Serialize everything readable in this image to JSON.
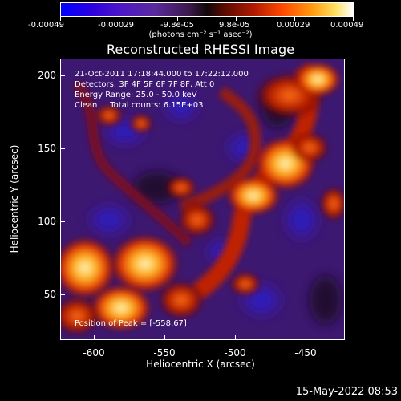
{
  "colorbar": {
    "tick_labels": [
      "-0.00049",
      "-0.00029",
      "-9.8e-05",
      "9.8e-05",
      "0.00029",
      "0.00049"
    ],
    "units": "(photons cm⁻² s⁻¹ asec⁻²)"
  },
  "title": "Reconstructed RHESSI Image",
  "info": {
    "time_range": "21-Oct-2011 17:18:44.000 to 17:22:12.000",
    "detectors": "Detectors: 3F 4F 5F 6F 7F 8F, Att 0",
    "energy": "Energy Range: 25.0 - 50.0 keV",
    "clean": "Clean     Total counts: 6.15E+03"
  },
  "peak": "Position of Peak = [-558,67]",
  "axes": {
    "xlabel": "Heliocentric X (arcsec)",
    "ylabel": "Heliocentric Y (arcsec)",
    "xticks": [
      "-600",
      "-550",
      "-500",
      "-450"
    ],
    "yticks": [
      "200",
      "150",
      "100",
      "50"
    ]
  },
  "date_stamp": "15-May-2022 08:53"
}
